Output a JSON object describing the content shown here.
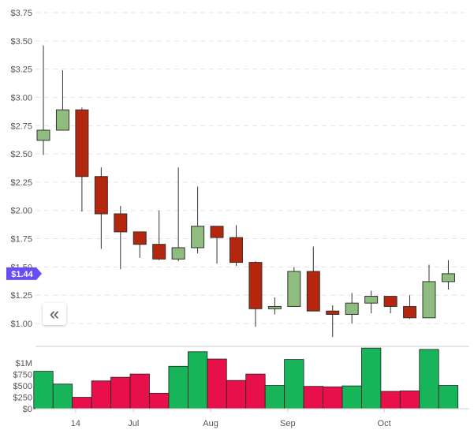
{
  "chart_data": [
    {
      "type": "candlestick",
      "title": "",
      "ylim": [
        0.86,
        3.82
      ],
      "y_ticks": [
        "$3.75",
        "$3.50",
        "$3.25",
        "$3.00",
        "$2.75",
        "$2.50",
        "$2.25",
        "$2.00",
        "$1.75",
        "$1.50",
        "$1.25",
        "$1.00"
      ],
      "y_tick_values": [
        3.75,
        3.5,
        3.25,
        3.0,
        2.75,
        2.5,
        2.25,
        2.0,
        1.75,
        1.5,
        1.25,
        1.0
      ],
      "grid": true,
      "current_price_label": "$1.44",
      "current_price": 1.44,
      "candles": [
        {
          "open": 2.62,
          "high": 3.46,
          "low": 2.49,
          "close": 2.71
        },
        {
          "open": 2.71,
          "high": 3.24,
          "low": 2.71,
          "close": 2.89
        },
        {
          "open": 2.89,
          "high": 2.91,
          "low": 1.99,
          "close": 2.3
        },
        {
          "open": 2.3,
          "high": 2.38,
          "low": 1.66,
          "close": 1.97
        },
        {
          "open": 1.97,
          "high": 2.04,
          "low": 1.48,
          "close": 1.81
        },
        {
          "open": 1.81,
          "high": 1.81,
          "low": 1.58,
          "close": 1.7
        },
        {
          "open": 1.7,
          "high": 2.0,
          "low": 1.56,
          "close": 1.57
        },
        {
          "open": 1.57,
          "high": 2.38,
          "low": 1.55,
          "close": 1.67
        },
        {
          "open": 1.67,
          "high": 2.21,
          "low": 1.62,
          "close": 1.86
        },
        {
          "open": 1.86,
          "high": 1.86,
          "low": 1.53,
          "close": 1.76
        },
        {
          "open": 1.76,
          "high": 1.87,
          "low": 1.51,
          "close": 1.54
        },
        {
          "open": 1.54,
          "high": 1.55,
          "low": 0.97,
          "close": 1.13
        },
        {
          "open": 1.13,
          "high": 1.23,
          "low": 1.08,
          "close": 1.15
        },
        {
          "open": 1.15,
          "high": 1.5,
          "low": 1.15,
          "close": 1.46
        },
        {
          "open": 1.46,
          "high": 1.68,
          "low": 1.11,
          "close": 1.11
        },
        {
          "open": 1.11,
          "high": 1.16,
          "low": 0.88,
          "close": 1.08
        },
        {
          "open": 1.08,
          "high": 1.27,
          "low": 1.0,
          "close": 1.18
        },
        {
          "open": 1.18,
          "high": 1.29,
          "low": 1.09,
          "close": 1.24
        },
        {
          "open": 1.24,
          "high": 1.24,
          "low": 1.09,
          "close": 1.15
        },
        {
          "open": 1.15,
          "high": 1.25,
          "low": 1.04,
          "close": 1.05
        },
        {
          "open": 1.05,
          "high": 1.52,
          "low": 1.05,
          "close": 1.37
        },
        {
          "open": 1.37,
          "high": 1.56,
          "low": 1.3,
          "close": 1.44
        }
      ],
      "up_color": "#8fbc7f",
      "down_color": "#b5260e"
    },
    {
      "type": "bar",
      "title": "",
      "ylim": [
        0,
        1350000
      ],
      "y_ticks": [
        "$1M",
        "$750",
        "$500",
        "$250",
        "$0"
      ],
      "y_tick_values": [
        1000000,
        750000,
        500000,
        250000,
        0
      ],
      "x_ticks": [
        "14",
        "Jul",
        "Aug",
        "Sep",
        "Oct"
      ],
      "values": [
        820000,
        540000,
        250000,
        610000,
        690000,
        760000,
        340000,
        930000,
        1250000,
        1090000,
        620000,
        760000,
        510000,
        1080000,
        490000,
        480000,
        500000,
        1330000,
        380000,
        390000,
        1300000,
        510000
      ],
      "up": [
        true,
        true,
        false,
        false,
        false,
        false,
        false,
        true,
        true,
        false,
        false,
        false,
        true,
        true,
        false,
        false,
        true,
        true,
        false,
        false,
        true,
        true
      ],
      "up_color": "#17b45a",
      "down_color": "#e8104a"
    }
  ],
  "ui": {
    "collapse_icon": "double-chevron-left-icon",
    "accent_color": "#6a4cf5",
    "collapse_glyph": "«"
  }
}
